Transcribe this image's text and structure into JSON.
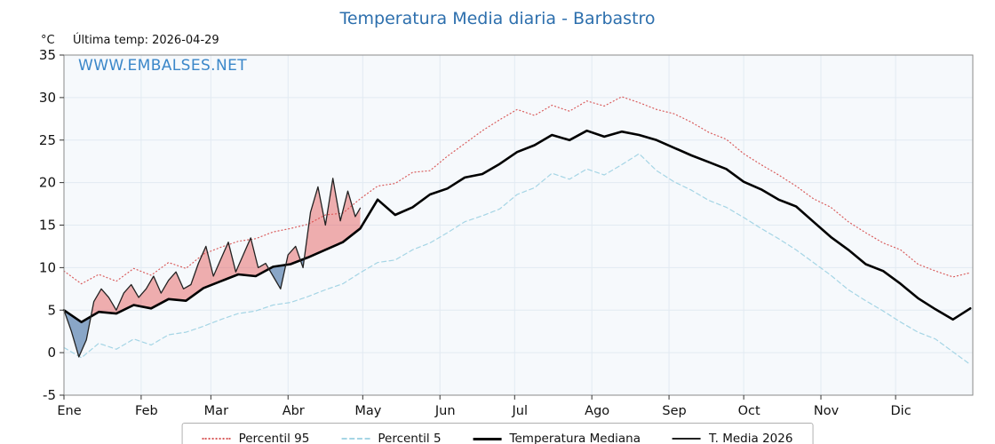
{
  "title": "Temperatura Media diaria - Barbastro",
  "header": {
    "units": "°C",
    "last_temp": "Última temp: 2026-04-29"
  },
  "watermark": "WWW.EMBALSES.NET",
  "legend": {
    "items": [
      {
        "label": "Percentil 95"
      },
      {
        "label": "Percentil 5"
      },
      {
        "label": "Temperatura Mediana"
      },
      {
        "label": "T. Media 2026"
      }
    ]
  },
  "chart_data": {
    "type": "line",
    "title": "Temperatura Media diaria - Barbastro",
    "xlabel": "",
    "ylabel": "°C",
    "xlim": [
      0,
      365
    ],
    "ylim": [
      -5,
      35
    ],
    "yticks": [
      -5,
      0,
      5,
      10,
      15,
      20,
      25,
      30,
      35
    ],
    "x_months": [
      "Ene",
      "Feb",
      "Mar",
      "Abr",
      "May",
      "Jun",
      "Jul",
      "Ago",
      "Sep",
      "Oct",
      "Nov",
      "Dic"
    ],
    "month_start_days": [
      0,
      31,
      59,
      90,
      120,
      151,
      181,
      212,
      243,
      273,
      304,
      334
    ],
    "grid": true,
    "plot_bg": "#f6f9fc",
    "grid_color": "#e2eaf2",
    "spine_color": "#8a8a8a",
    "tick_color": "#333333",
    "title_color": "#2d6fad",
    "watermark_color": "#3b87c9",
    "fill_above_color": "rgba(228,80,80,0.45)",
    "fill_below_color": "rgba(110,145,185,0.8)",
    "legend_position": "bottom-center",
    "series": [
      {
        "name": "Percentil 95",
        "style": "dotted",
        "color": "#d95c5c",
        "width": 1.2,
        "x": [
          0,
          7,
          14,
          21,
          28,
          35,
          42,
          49,
          56,
          63,
          70,
          77,
          84,
          91,
          98,
          105,
          112,
          119,
          126,
          133,
          140,
          147,
          154,
          161,
          168,
          175,
          182,
          189,
          196,
          203,
          210,
          217,
          224,
          231,
          238,
          245,
          252,
          259,
          266,
          273,
          280,
          287,
          294,
          301,
          308,
          315,
          322,
          329,
          336,
          343,
          350,
          357,
          364
        ],
        "values": [
          9.6,
          8.1,
          9.2,
          8.4,
          9.9,
          9.1,
          10.6,
          9.9,
          11.6,
          12.4,
          13.1,
          13.4,
          14.2,
          14.6,
          15.1,
          16.2,
          16.4,
          18.1,
          19.6,
          19.9,
          21.2,
          21.4,
          23.1,
          24.6,
          26.1,
          27.4,
          28.6,
          27.9,
          29.1,
          28.4,
          29.6,
          29.0,
          30.1,
          29.4,
          28.6,
          28.1,
          27.1,
          25.9,
          25.1,
          23.4,
          22.1,
          20.9,
          19.6,
          18.1,
          17.1,
          15.4,
          14.1,
          12.9,
          12.1,
          10.4,
          9.6,
          8.9,
          9.4
        ]
      },
      {
        "name": "Percentil 5",
        "style": "dashed",
        "color": "#a5d5e5",
        "width": 1.2,
        "x": [
          0,
          7,
          14,
          21,
          28,
          35,
          42,
          49,
          56,
          63,
          70,
          77,
          84,
          91,
          98,
          105,
          112,
          119,
          126,
          133,
          140,
          147,
          154,
          161,
          168,
          175,
          182,
          189,
          196,
          203,
          210,
          217,
          224,
          231,
          238,
          245,
          252,
          259,
          266,
          273,
          280,
          287,
          294,
          301,
          308,
          315,
          322,
          329,
          336,
          343,
          350,
          357,
          364
        ],
        "values": [
          0.6,
          -0.6,
          1.1,
          0.4,
          1.6,
          0.9,
          2.1,
          2.4,
          3.1,
          3.9,
          4.6,
          4.9,
          5.6,
          5.9,
          6.6,
          7.4,
          8.1,
          9.4,
          10.6,
          10.9,
          12.1,
          12.9,
          14.1,
          15.4,
          16.1,
          16.9,
          18.6,
          19.4,
          21.1,
          20.4,
          21.6,
          20.9,
          22.1,
          23.4,
          21.4,
          20.1,
          19.1,
          17.9,
          17.1,
          15.9,
          14.6,
          13.4,
          12.1,
          10.6,
          9.1,
          7.4,
          6.1,
          4.9,
          3.6,
          2.4,
          1.6,
          0.1,
          -1.4
        ]
      },
      {
        "name": "Temperatura Mediana",
        "style": "solid",
        "color": "#000000",
        "width": 2.6,
        "x": [
          0,
          7,
          14,
          21,
          28,
          35,
          42,
          49,
          56,
          63,
          70,
          77,
          84,
          91,
          98,
          105,
          112,
          119,
          126,
          133,
          140,
          147,
          154,
          161,
          168,
          175,
          182,
          189,
          196,
          203,
          210,
          217,
          224,
          231,
          238,
          245,
          252,
          259,
          266,
          273,
          280,
          287,
          294,
          301,
          308,
          315,
          322,
          329,
          336,
          343,
          350,
          357,
          364
        ],
        "values": [
          5.0,
          3.6,
          4.8,
          4.6,
          5.6,
          5.2,
          6.3,
          6.1,
          7.6,
          8.4,
          9.2,
          9.0,
          10.1,
          10.4,
          11.2,
          12.1,
          13.0,
          14.6,
          18.0,
          16.2,
          17.1,
          18.6,
          19.3,
          20.6,
          21.0,
          22.2,
          23.6,
          24.4,
          25.6,
          25.0,
          26.1,
          25.4,
          26.0,
          25.6,
          25.0,
          24.1,
          23.2,
          22.4,
          21.6,
          20.1,
          19.2,
          18.0,
          17.2,
          15.4,
          13.6,
          12.1,
          10.4,
          9.6,
          8.1,
          6.4,
          5.1,
          3.9,
          5.2
        ]
      },
      {
        "name": "T. Media 2026",
        "style": "solid",
        "color": "#222222",
        "width": 1.3,
        "x": [
          0,
          3,
          6,
          9,
          12,
          15,
          18,
          21,
          24,
          27,
          30,
          33,
          36,
          39,
          42,
          45,
          48,
          51,
          54,
          57,
          60,
          63,
          66,
          69,
          72,
          75,
          78,
          81,
          84,
          87,
          90,
          93,
          96,
          99,
          102,
          105,
          108,
          111,
          114,
          117,
          119
        ],
        "values": [
          5.0,
          2.5,
          -0.5,
          1.5,
          6.0,
          7.5,
          6.5,
          5.0,
          7.0,
          8.0,
          6.5,
          7.5,
          9.0,
          7.0,
          8.5,
          9.5,
          7.5,
          8.0,
          10.5,
          12.5,
          9.0,
          11.0,
          13.0,
          9.5,
          11.5,
          13.5,
          10.0,
          10.5,
          9.0,
          7.5,
          11.5,
          12.5,
          10.0,
          16.5,
          19.5,
          15.0,
          20.5,
          15.5,
          19.0,
          16.0,
          17.0
        ]
      }
    ],
    "fills": {
      "between": [
        "T. Media 2026",
        "Temperatura Mediana"
      ],
      "above_color": "rgba(228,80,80,0.45)",
      "below_color": "rgba(110,145,185,0.8)"
    }
  }
}
